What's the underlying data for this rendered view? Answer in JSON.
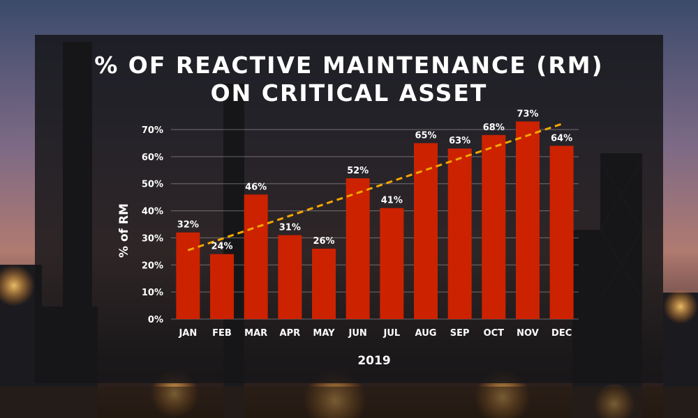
{
  "title_lines": [
    "% OF REACTIVE MAINTENANCE (RM)",
    "ON CRITICAL ASSET"
  ],
  "chart_data": {
    "type": "bar",
    "title": "% OF REACTIVE MAINTENANCE (RM) ON CRITICAL ASSET",
    "xlabel": "2019",
    "ylabel": "% of RM",
    "categories": [
      "JAN",
      "FEB",
      "MAR",
      "APR",
      "MAY",
      "JUN",
      "JUL",
      "AUG",
      "SEP",
      "OCT",
      "NOV",
      "DEC"
    ],
    "values": [
      32,
      24,
      46,
      31,
      26,
      52,
      41,
      65,
      63,
      68,
      73,
      64
    ],
    "data_labels": [
      "32%",
      "24%",
      "46%",
      "31%",
      "26%",
      "52%",
      "41%",
      "65%",
      "63%",
      "68%",
      "73%",
      "64%"
    ],
    "yticks": [
      0,
      10,
      20,
      30,
      40,
      50,
      60,
      70
    ],
    "ytick_labels": [
      "0%",
      "10%",
      "20%",
      "30%",
      "40%",
      "50%",
      "60%",
      "70%"
    ],
    "ylim": [
      0,
      70
    ],
    "grid": true,
    "trendline": {
      "type": "linear",
      "style": "dashed",
      "color": "#f5a800"
    },
    "bar_color": "#cc2200"
  }
}
